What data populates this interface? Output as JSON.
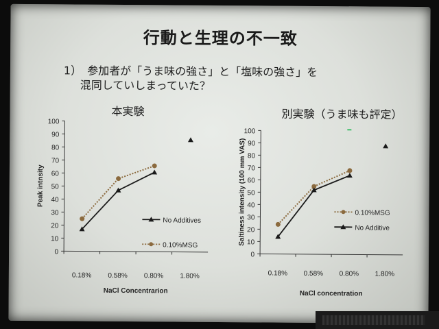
{
  "slide": {
    "title": "行動と生理の不一致",
    "question_num": "1）",
    "question_line1": "参加者が「うま味の強さ」と「塩味の強さ」を",
    "question_line2": "混同していしまっていた？"
  },
  "chart_data": [
    {
      "type": "line",
      "title": "本実験",
      "xlabel": "NaCl Concentrarion",
      "ylabel": "Peak intnsity",
      "categories": [
        "0.18%",
        "0.58%",
        "0.80%",
        "1.80%"
      ],
      "ylim": [
        0,
        100
      ],
      "yticks": [
        0,
        10,
        20,
        30,
        40,
        50,
        60,
        70,
        80,
        90,
        100
      ],
      "grid": false,
      "series": [
        {
          "name": "No Additives",
          "style": "solid",
          "marker": "triangle",
          "color": "#1a1a1a",
          "values": [
            17,
            47,
            61,
            86
          ]
        },
        {
          "name": "0.10%MSG",
          "style": "dotted",
          "marker": "circle",
          "color": "#8b6a3e",
          "values": [
            25,
            56,
            66,
            null
          ]
        }
      ]
    },
    {
      "type": "line",
      "title": "別実験（うま味も評定）",
      "xlabel": "NaCl concentration",
      "ylabel": "Saltiness intensity (100 mm VAS)",
      "categories": [
        "0.18%",
        "0.58%",
        "0.80%",
        "1.80%"
      ],
      "ylim": [
        0,
        100
      ],
      "yticks": [
        0,
        10,
        20,
        30,
        40,
        50,
        60,
        70,
        80,
        90,
        100
      ],
      "grid": false,
      "series": [
        {
          "name": "0.10%MSG",
          "style": "dotted",
          "marker": "circle",
          "color": "#8b6a3e",
          "values": [
            24,
            55,
            68,
            null
          ]
        },
        {
          "name": "No Additive",
          "style": "solid",
          "marker": "triangle",
          "color": "#1a1a1a",
          "values": [
            14,
            52,
            64,
            88
          ]
        }
      ]
    }
  ]
}
